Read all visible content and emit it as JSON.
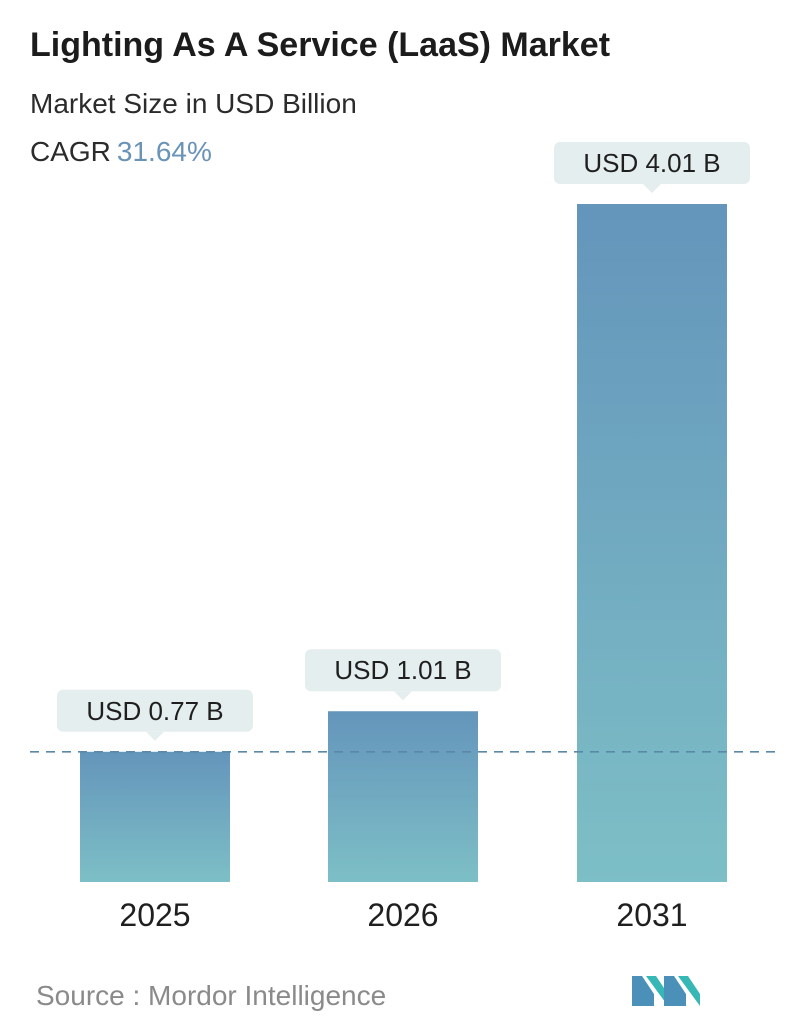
{
  "header": {
    "title": "Lighting As A Service (LaaS) Market",
    "subtitle": "Market Size in USD Billion",
    "cagr_label": "CAGR",
    "cagr_value": "31.64%"
  },
  "chart_data": {
    "type": "bar",
    "categories": [
      "2025",
      "2026",
      "2031"
    ],
    "values": [
      0.77,
      1.01,
      4.01
    ],
    "labels": [
      "USD 0.77 B",
      "USD 1.01 B",
      "USD 4.01 B"
    ],
    "ylim": [
      0,
      4.01
    ],
    "grid": false,
    "reference_line": 0.77
  },
  "colors": {
    "bar_top": "#6495bb",
    "bar_bottom": "#7dbfc6",
    "label_bg": "#e5eeee",
    "dash_line": "#5b87a8",
    "cagr_accent": "#6a93b8"
  },
  "footer": {
    "source": "Source :  Mordor Intelligence",
    "logo_icon": "mordor-intelligence-logo-icon"
  }
}
